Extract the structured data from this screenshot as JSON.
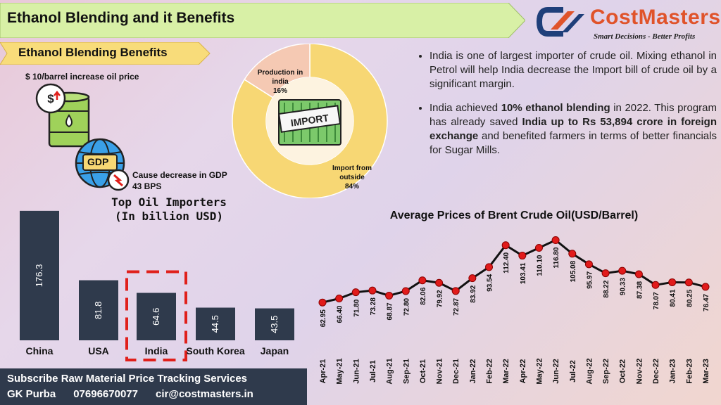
{
  "header": {
    "title": "Ethanol Blending and it Benefits",
    "subtitle": "Ethanol Blending Benefits"
  },
  "logo": {
    "name": "CostMasters",
    "tagline": "Smart Decisions - Better Profits",
    "icon": "costmasters-logo-icon",
    "colors": {
      "orange": "#e0532a",
      "navy": "#1f3f7a"
    }
  },
  "infographic": {
    "price_label": "$ 10/barrel increase oil price",
    "barrel_icon": "oil-barrel-icon",
    "gdp_icon": "gdp-globe-icon",
    "gdp_badge": "GDP",
    "gdp_text_1": "Cause decrease in GDP",
    "gdp_text_2": "43 BPS"
  },
  "bullets": [
    {
      "parts": [
        {
          "t": "India is one of largest importer of crude oil. Mixing ethanol in Petrol will help India decrease the Import bill of crude oil by a significant margin.",
          "b": false
        }
      ]
    },
    {
      "parts": [
        {
          "t": "India achieved ",
          "b": false
        },
        {
          "t": "10% ethanol blending",
          "b": true
        },
        {
          "t": " in 2022. This program has already saved ",
          "b": false
        },
        {
          "t": "India up to Rs 53,894 crore in foreign exchange",
          "b": true
        },
        {
          "t": " and benefited farmers in terms of better financials for Sugar Mills.",
          "b": false
        }
      ]
    }
  ],
  "footer": {
    "line1": "Subscribe Raw Material Price Tracking Services",
    "name": "GK Purba",
    "phone": "07696670077",
    "email": "cir@costmasters.in"
  },
  "colors": {
    "bar": "#2f3a4c",
    "line": "#111111",
    "point": "#e11b1b",
    "donut_import": "#f7d774",
    "donut_prod": "#f5c9b3",
    "highlight": "#e0201b",
    "title_bar": "#d8f0a6"
  },
  "chart_data": [
    {
      "type": "pie",
      "style": "donut",
      "center_icon": "import-container-icon",
      "center_label": "IMPORT",
      "slices": [
        {
          "label": "Import from outside",
          "value": 84,
          "display": "84%"
        },
        {
          "label": "Production in india",
          "value": 16,
          "display": "16%"
        }
      ]
    },
    {
      "type": "bar",
      "title": "Top Oil Importers\n(In billion USD)",
      "title_lines": [
        "Top Oil Importers",
        "(In billion USD)"
      ],
      "categories": [
        "China",
        "USA",
        "India",
        "South Korea",
        "Japan"
      ],
      "values": [
        176.3,
        81.8,
        64.6,
        44.5,
        43.5
      ],
      "highlighted": "India",
      "ylim": [
        0,
        180
      ],
      "grid": false
    },
    {
      "type": "line",
      "title": "Average Prices of Brent Crude Oil(USD/Barrel)",
      "x": [
        "Apr-21",
        "May-21",
        "Jun-21",
        "Jul-21",
        "Aug-21",
        "Sep-21",
        "Oct-21",
        "Nov-21",
        "Dec-21",
        "Jan-22",
        "Feb-22",
        "Mar-22",
        "Apr-22",
        "May-22",
        "Jun-22",
        "Jul-22",
        "Aug-22",
        "Sep-22",
        "Oct-22",
        "Nov-22",
        "Dec-22",
        "Jan-23",
        "Feb-23",
        "Mar-23"
      ],
      "values": [
        62.95,
        66.4,
        71.8,
        73.28,
        68.87,
        72.8,
        82.06,
        79.92,
        72.87,
        83.92,
        93.54,
        112.4,
        103.41,
        110.1,
        116.8,
        105.08,
        95.97,
        88.22,
        90.33,
        87.38,
        78.07,
        80.41,
        80.25,
        76.47
      ],
      "labels": [
        "62.95",
        "66.40",
        "71.80",
        "73.28",
        "68.87",
        "72.80",
        "82.06",
        "79.92",
        "72.87",
        "83.92",
        "93.54",
        "112.40",
        "103.41",
        "110.10",
        "116.80",
        "105.08",
        "95.97",
        "88.22",
        "90.33",
        "87.38",
        "78.07",
        "80.41",
        "80.25",
        "76.47"
      ],
      "ylim": [
        40,
        125
      ],
      "grid": false
    }
  ]
}
